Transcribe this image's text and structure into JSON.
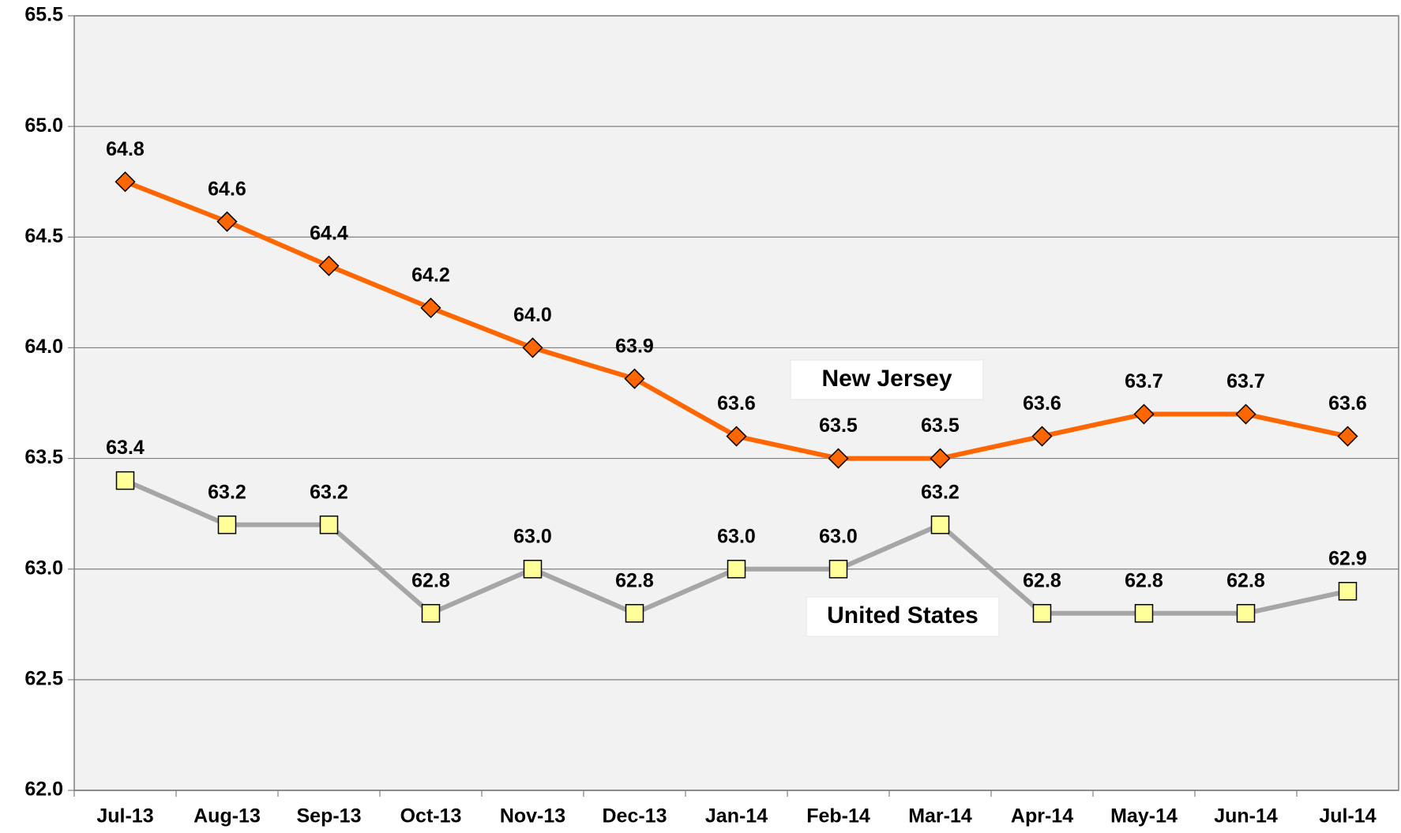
{
  "chart_data": {
    "type": "line",
    "categories": [
      "Jul-13",
      "Aug-13",
      "Sep-13",
      "Oct-13",
      "Nov-13",
      "Dec-13",
      "Jan-14",
      "Feb-14",
      "Mar-14",
      "Apr-14",
      "May-14",
      "Jun-14",
      "Jul-14"
    ],
    "series": [
      {
        "name": "New Jersey",
        "color": "#ff6600",
        "marker": "diamond",
        "marker_color": "#ff6600",
        "values": [
          64.75,
          64.57,
          64.37,
          64.18,
          64.0,
          63.86,
          63.6,
          63.5,
          63.5,
          63.6,
          63.7,
          63.7,
          63.6
        ],
        "value_labels": [
          "64.8",
          "64.6",
          "64.4",
          "64.2",
          "64.0",
          "63.9",
          "63.6",
          "63.5",
          "63.5",
          "63.6",
          "63.7",
          "63.7",
          "63.6"
        ]
      },
      {
        "name": "United States",
        "color": "#a6a6a6",
        "marker": "square",
        "marker_color": "#ffff99",
        "values": [
          63.4,
          63.2,
          63.2,
          62.8,
          63.0,
          62.8,
          63.0,
          63.0,
          63.2,
          62.8,
          62.8,
          62.8,
          62.9
        ],
        "value_labels": [
          "63.4",
          "63.2",
          "63.2",
          "62.8",
          "63.0",
          "62.8",
          "63.0",
          "63.0",
          "63.2",
          "62.8",
          "62.8",
          "62.8",
          "62.9"
        ]
      }
    ],
    "ylim": [
      62.0,
      65.5
    ],
    "yticks": [
      {
        "value": 62.0,
        "label": "62.0"
      },
      62.5,
      {
        "value": 63.0,
        "label": "63.0"
      },
      63.5,
      {
        "value": 64.0,
        "label": "64.0"
      },
      64.5,
      {
        "value": 65.0,
        "label": "65.0"
      },
      65.5
    ],
    "grid": true
  }
}
